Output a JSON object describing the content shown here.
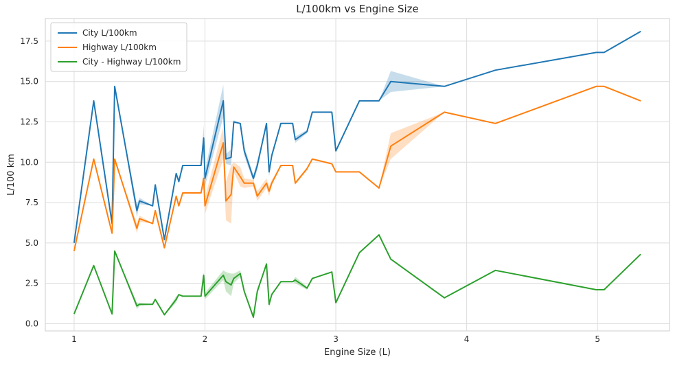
{
  "chart_data": {
    "type": "line",
    "title": "L/100km vs Engine Size",
    "xlabel": "Engine Size (L)",
    "ylabel": "L/100 km",
    "xlim": [
      0.78,
      5.55
    ],
    "ylim": [
      -0.45,
      18.9
    ],
    "x_ticks": [
      1,
      2,
      3,
      4,
      5
    ],
    "y_ticks": [
      0.0,
      2.5,
      5.0,
      7.5,
      10.0,
      12.5,
      15.0,
      17.5
    ],
    "x_tick_labels": [
      "1",
      "2",
      "3",
      "4",
      "5"
    ],
    "y_tick_labels": [
      "0.0",
      "2.5",
      "5.0",
      "7.5",
      "10.0",
      "12.5",
      "15.0",
      "17.5"
    ],
    "grid": true,
    "legend_position": "top-left",
    "series": [
      {
        "name": "City L/100km",
        "color": "#1f77b4",
        "x": [
          1.0,
          1.15,
          1.29,
          1.31,
          1.48,
          1.5,
          1.6,
          1.62,
          1.69,
          1.78,
          1.8,
          1.83,
          1.97,
          1.99,
          2.0,
          2.14,
          2.16,
          2.2,
          2.22,
          2.27,
          2.3,
          2.37,
          2.4,
          2.47,
          2.49,
          2.51,
          2.58,
          2.67,
          2.69,
          2.78,
          2.82,
          2.97,
          3.0,
          3.18,
          3.33,
          3.42,
          3.83,
          4.22,
          4.99,
          5.05,
          5.33
        ],
        "y": [
          5.0,
          13.8,
          6.2,
          14.7,
          7.0,
          7.6,
          7.3,
          8.6,
          5.2,
          9.3,
          8.8,
          9.8,
          9.8,
          11.5,
          9.0,
          13.8,
          10.2,
          10.3,
          12.5,
          12.4,
          10.7,
          9.0,
          9.8,
          12.4,
          9.4,
          10.4,
          12.4,
          12.4,
          11.4,
          11.9,
          13.1,
          13.1,
          10.7,
          13.8,
          13.8,
          15.0,
          14.7,
          15.7,
          16.8,
          16.8,
          18.1
        ],
        "band_hw": [
          0,
          0,
          0,
          0,
          0.4,
          0.2,
          0,
          0,
          0,
          0,
          0,
          0,
          0,
          0.8,
          0.5,
          1.0,
          0.3,
          0.5,
          0.1,
          0,
          0.3,
          0.2,
          0.3,
          0,
          0.3,
          0.2,
          0,
          0,
          0.2,
          0.1,
          0,
          0,
          0,
          0,
          0,
          0.65,
          0,
          0,
          0,
          0,
          0
        ]
      },
      {
        "name": "Highway L/100km",
        "color": "#ff7f0e",
        "x": [
          1.0,
          1.15,
          1.29,
          1.31,
          1.48,
          1.5,
          1.6,
          1.62,
          1.69,
          1.78,
          1.8,
          1.83,
          1.97,
          1.99,
          2.0,
          2.14,
          2.16,
          2.2,
          2.22,
          2.27,
          2.3,
          2.37,
          2.4,
          2.47,
          2.49,
          2.51,
          2.58,
          2.67,
          2.69,
          2.78,
          2.82,
          2.97,
          3.0,
          3.18,
          3.33,
          3.42,
          3.83,
          4.22,
          4.99,
          5.05,
          5.33
        ],
        "y": [
          4.5,
          10.2,
          5.6,
          10.2,
          5.9,
          6.5,
          6.2,
          7.0,
          4.7,
          7.9,
          7.3,
          8.1,
          8.1,
          9.0,
          7.3,
          11.2,
          7.6,
          8.0,
          9.7,
          9.1,
          8.7,
          8.7,
          7.9,
          8.7,
          8.2,
          8.7,
          9.8,
          9.8,
          8.7,
          9.6,
          10.2,
          9.9,
          9.4,
          9.4,
          8.4,
          11.0,
          13.1,
          12.4,
          14.7,
          14.7,
          13.8
        ],
        "band_hw": [
          0,
          0,
          0,
          0,
          0.3,
          0.2,
          0,
          0,
          0,
          0,
          0,
          0,
          0,
          0.6,
          0.5,
          1.0,
          1.2,
          1.8,
          0.3,
          0.6,
          0.3,
          0.2,
          0.3,
          0.3,
          0.3,
          0.2,
          0,
          0,
          0.1,
          0.1,
          0,
          0,
          0,
          0,
          0,
          0.8,
          0,
          0,
          0,
          0,
          0
        ]
      },
      {
        "name": "City - Highway L/100km",
        "color": "#2ca02c",
        "x": [
          1.0,
          1.15,
          1.29,
          1.31,
          1.48,
          1.5,
          1.6,
          1.62,
          1.69,
          1.78,
          1.8,
          1.83,
          1.97,
          1.99,
          2.0,
          2.14,
          2.16,
          2.2,
          2.22,
          2.27,
          2.3,
          2.37,
          2.4,
          2.47,
          2.49,
          2.51,
          2.58,
          2.67,
          2.69,
          2.78,
          2.82,
          2.97,
          3.0,
          3.18,
          3.33,
          3.42,
          3.83,
          4.22,
          4.99,
          5.05,
          5.33
        ],
        "y": [
          0.6,
          3.6,
          0.6,
          4.5,
          1.1,
          1.2,
          1.2,
          1.5,
          0.55,
          1.5,
          1.8,
          1.7,
          1.7,
          3.0,
          1.7,
          3.0,
          2.6,
          2.4,
          2.8,
          3.1,
          2.0,
          0.4,
          2.0,
          3.7,
          1.2,
          1.8,
          2.6,
          2.6,
          2.7,
          2.2,
          2.8,
          3.2,
          1.3,
          4.4,
          5.5,
          4.0,
          1.6,
          3.3,
          2.1,
          2.1,
          4.3
        ],
        "band_hw": [
          0,
          0,
          0,
          0,
          0.2,
          0.1,
          0,
          0,
          0,
          0.2,
          0,
          0,
          0,
          0.2,
          0.2,
          0.3,
          0.6,
          0.7,
          0.3,
          0.2,
          0.1,
          0,
          0.2,
          0,
          0.2,
          0.1,
          0,
          0,
          0.2,
          0.1,
          0,
          0,
          0,
          0,
          0,
          0,
          0,
          0,
          0,
          0,
          0
        ]
      }
    ]
  }
}
